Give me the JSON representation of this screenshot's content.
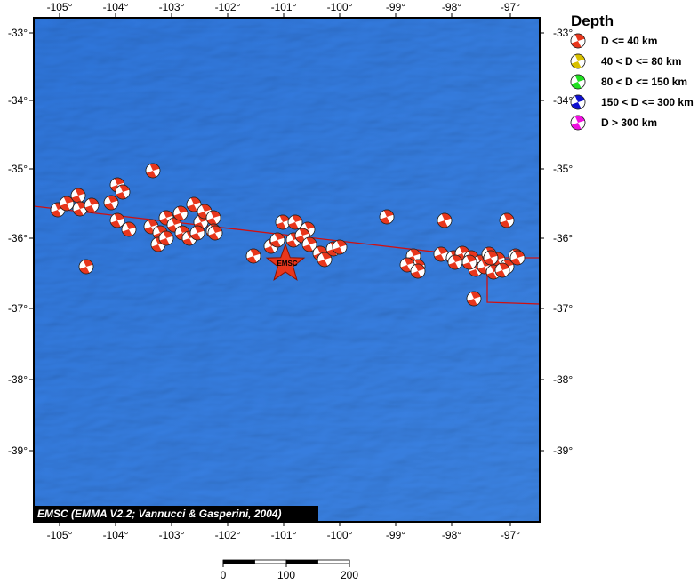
{
  "map": {
    "x_labels": [
      "-105°",
      "-104°",
      "-103°",
      "-102°",
      "-101°",
      "-100°",
      "-99°",
      "-98°",
      "-97°"
    ],
    "y_labels": [
      "-33°",
      "-34°",
      "-35°",
      "-36°",
      "-37°",
      "-38°",
      "-39°"
    ],
    "epicenter_label": "EMSC",
    "credit": "EMSC (EMMA V2.2; Vannucci & Gasperini, 2004)"
  },
  "legend": {
    "title": "Depth",
    "entries": [
      "D <= 40 km",
      "40 < D <= 80 km",
      "80 < D <= 150 km",
      "150 < D <= 300 km",
      "D > 300 km"
    ]
  },
  "scale_bar": {
    "labels": [
      "0",
      "100",
      "200"
    ]
  }
}
